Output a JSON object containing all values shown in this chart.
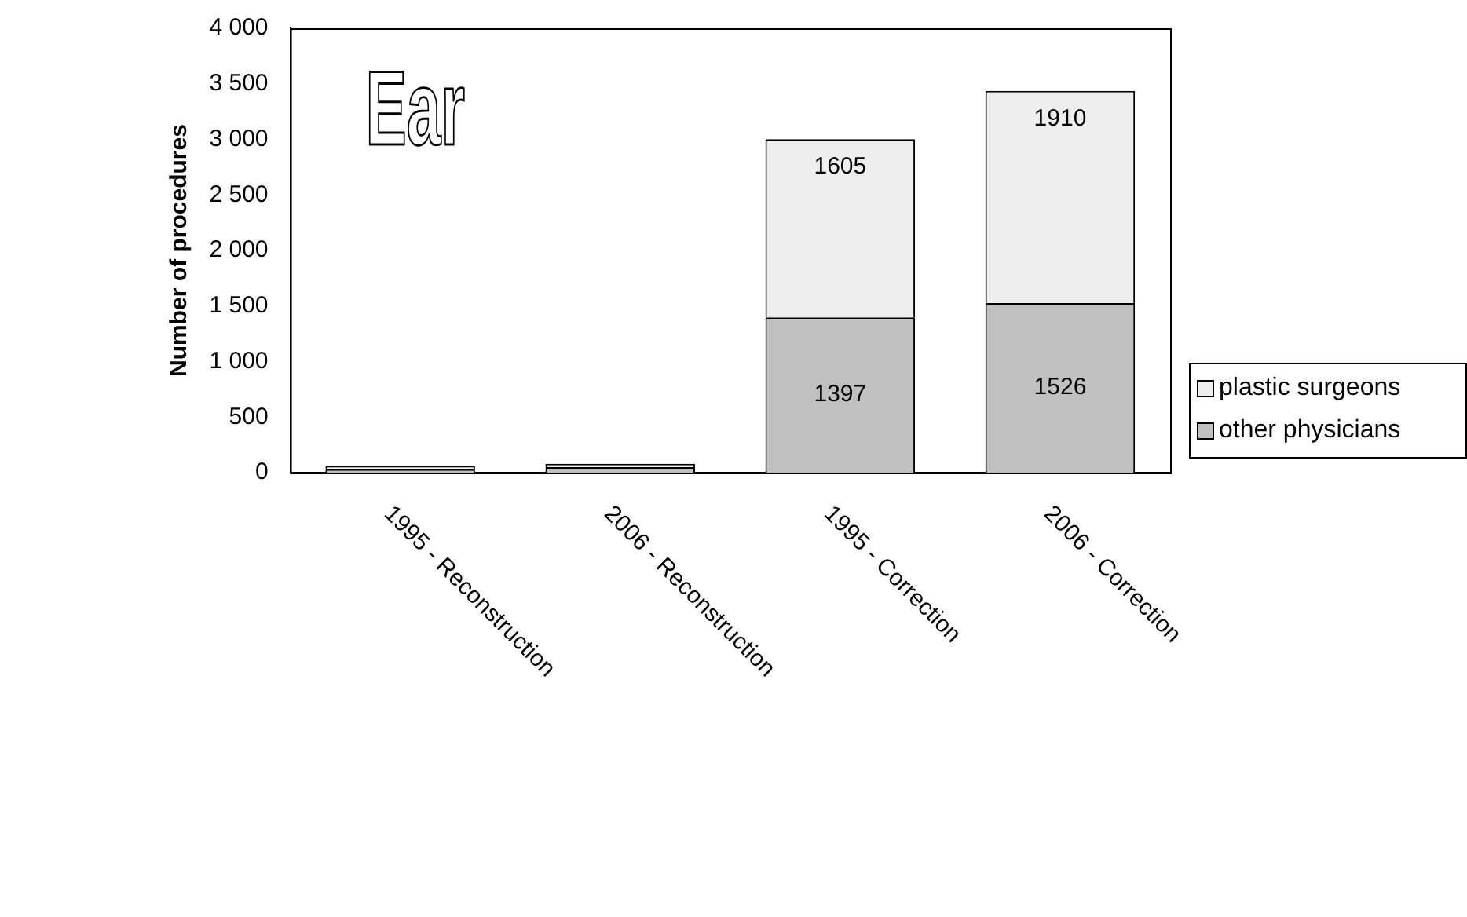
{
  "chart_data": {
    "type": "bar",
    "title": "Ear",
    "ylabel": "Number of procedures",
    "categories": [
      "1995 - Reconstruction",
      "2006 - Reconstruction",
      "1995 - Correction",
      "2006 - Correction"
    ],
    "stacked": true,
    "series": [
      {
        "name": "other physicians",
        "color": "#c0c0c0",
        "values": [
          30,
          50,
          1397,
          1526
        ],
        "value_labels": [
          null,
          null,
          "1397",
          "1526"
        ]
      },
      {
        "name": "plastic surgeons",
        "color": "#eeeeee",
        "values": [
          30,
          30,
          1605,
          1910
        ],
        "value_labels": [
          null,
          null,
          "1605",
          "1910"
        ]
      }
    ],
    "ylim": [
      0,
      4000
    ],
    "yticks": [
      {
        "value": 0,
        "label": "0"
      },
      {
        "value": 500,
        "label": "500"
      },
      {
        "value": 1000,
        "label": "1 000"
      },
      {
        "value": 1500,
        "label": "1 500"
      },
      {
        "value": 2000,
        "label": "2 000"
      },
      {
        "value": 2500,
        "label": "2 500"
      },
      {
        "value": 3000,
        "label": "3 000"
      },
      {
        "value": 3500,
        "label": "3 500"
      },
      {
        "value": 4000,
        "label": "4 000"
      }
    ],
    "grid": false,
    "legend": "right"
  }
}
